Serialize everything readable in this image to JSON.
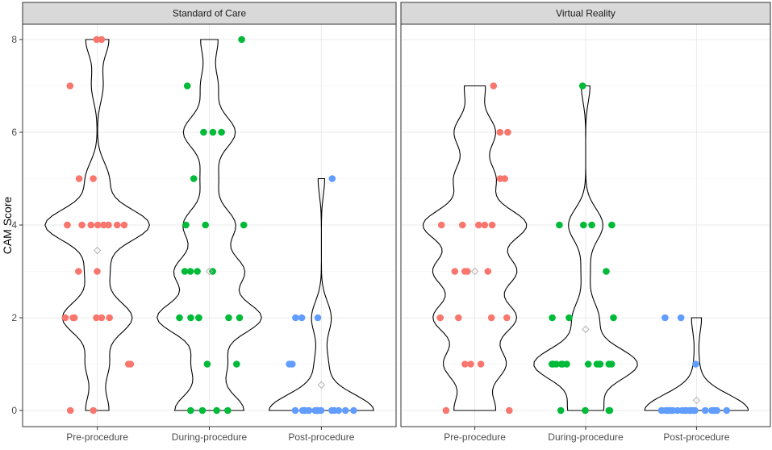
{
  "chart_data": {
    "type": "violin",
    "ylabel": "CAM Score",
    "xlabel": "",
    "ylim": [
      -0.4,
      8.4
    ],
    "yticks": [
      0,
      2,
      4,
      6,
      8
    ],
    "categories": [
      "Pre-procedure",
      "During-procedure",
      "Post-procedure"
    ],
    "grid": true,
    "legend": "none",
    "panels": [
      {
        "name": "Standard of Care",
        "groups": [
          {
            "category": "Pre-procedure",
            "color": "#F8766D",
            "mean": 3.45,
            "points": [
              8,
              8,
              7,
              5,
              5,
              4,
              4,
              4,
              4,
              4,
              4,
              4,
              4,
              4,
              3,
              3,
              2,
              2,
              2,
              2,
              2,
              2,
              1,
              1,
              0,
              0
            ]
          },
          {
            "category": "During-procedure",
            "color": "#00BA38",
            "mean": 3.0,
            "points": [
              8,
              7,
              6,
              6,
              6,
              5,
              4,
              4,
              4,
              3,
              3,
              3,
              3,
              2,
              2,
              2,
              2,
              2,
              2,
              1,
              1,
              0,
              0,
              0,
              0
            ]
          },
          {
            "category": "Post-procedure",
            "color": "#619CFF",
            "mean": 0.55,
            "points": [
              5,
              2,
              2,
              2,
              1,
              1,
              0,
              0,
              0,
              0,
              0,
              0,
              0,
              0,
              0,
              0,
              0,
              0,
              0,
              0,
              0,
              0
            ]
          }
        ]
      },
      {
        "name": "Virtual Reality",
        "groups": [
          {
            "category": "Pre-procedure",
            "color": "#F8766D",
            "mean": 3.0,
            "points": [
              7,
              6,
              6,
              5,
              5,
              4,
              4,
              4,
              4,
              4,
              3,
              3,
              3,
              3,
              2,
              2,
              2,
              2,
              1,
              1,
              1,
              0,
              0
            ]
          },
          {
            "category": "During-procedure",
            "color": "#00BA38",
            "mean": 1.75,
            "points": [
              7,
              4,
              4,
              4,
              4,
              3,
              2,
              2,
              2,
              1,
              1,
              1,
              1,
              1,
              1,
              1,
              1,
              1,
              1,
              1,
              1,
              0,
              0,
              0,
              0
            ]
          },
          {
            "category": "Post-procedure",
            "color": "#619CFF",
            "mean": 0.22,
            "points": [
              2,
              2,
              1,
              0,
              0,
              0,
              0,
              0,
              0,
              0,
              0,
              0,
              0,
              0,
              0,
              0,
              0,
              0,
              0,
              0,
              0,
              0,
              0,
              0
            ]
          }
        ]
      }
    ]
  }
}
